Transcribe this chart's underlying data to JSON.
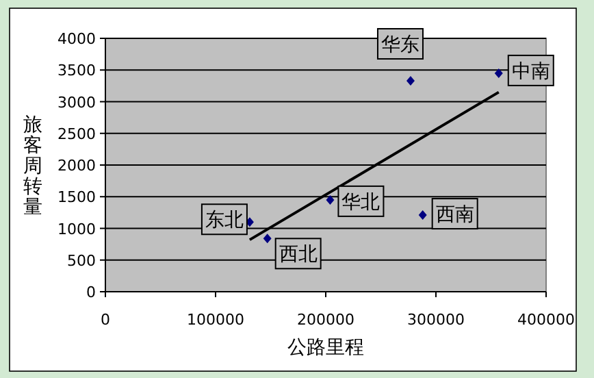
{
  "chart_data": {
    "type": "scatter",
    "xlabel": "公路里程",
    "ylabel": "旅客周转量",
    "xlim": [
      0,
      400000
    ],
    "ylim": [
      0,
      4000
    ],
    "xticks": [
      0,
      100000,
      200000,
      300000,
      400000
    ],
    "yticks": [
      0,
      500,
      1000,
      1500,
      2000,
      2500,
      3000,
      3500,
      4000
    ],
    "grid": "y",
    "series": [
      {
        "type": "scatter",
        "marker": "diamond",
        "color": "#000080",
        "x": [
          131000,
          147000,
          204000,
          288000,
          277000,
          357000
        ],
        "values": [
          1100,
          840,
          1450,
          1210,
          3330,
          3450
        ]
      },
      {
        "type": "line",
        "color": "#000000",
        "x": [
          131000,
          357000
        ],
        "values": [
          820,
          3150
        ]
      }
    ],
    "annotations": [
      {
        "text": "东北",
        "x": 131000,
        "y": 1100
      },
      {
        "text": "西北",
        "x": 147000,
        "y": 840
      },
      {
        "text": "华北",
        "x": 204000,
        "y": 1450
      },
      {
        "text": "西南",
        "x": 288000,
        "y": 1210
      },
      {
        "text": "华东",
        "x": 277000,
        "y": 3330
      },
      {
        "text": "中南",
        "x": 357000,
        "y": 3450
      }
    ]
  }
}
